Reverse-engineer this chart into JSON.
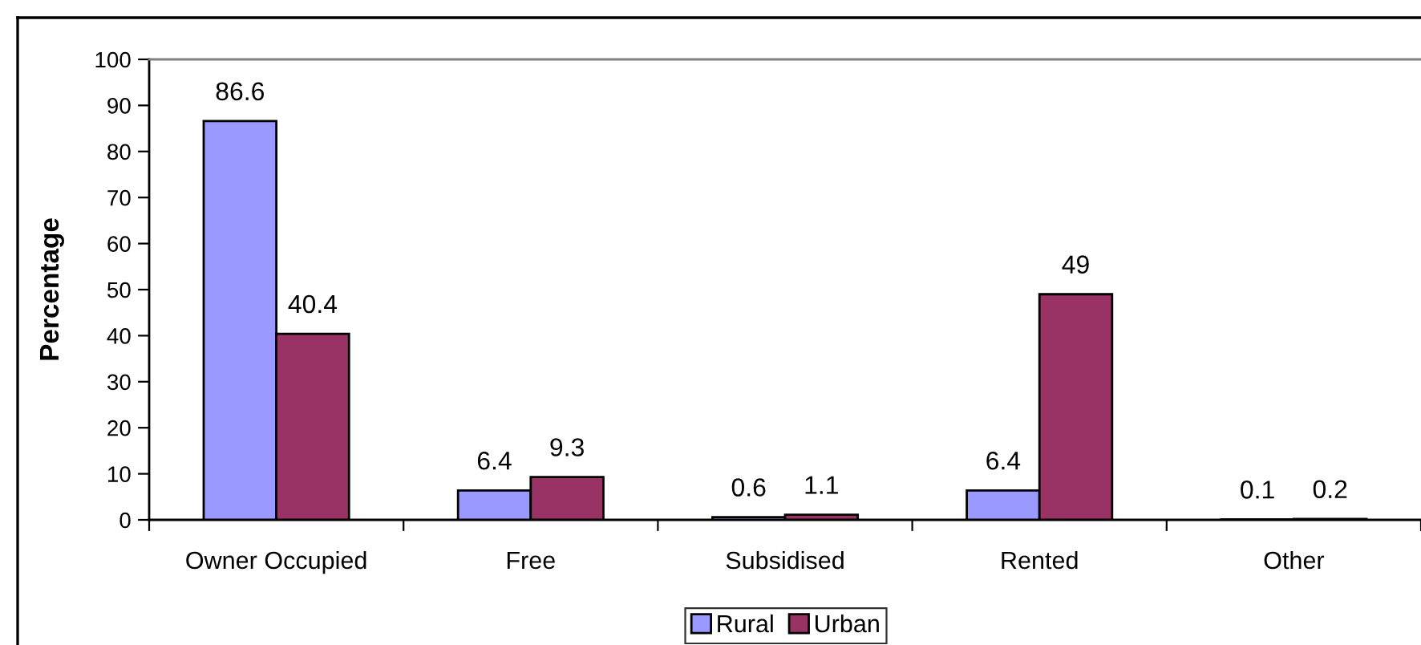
{
  "chart_data": {
    "type": "bar",
    "ylabel": "Percentage",
    "categories": [
      "Owner Occupied",
      "Free",
      "Subsidised",
      "Rented",
      "Other"
    ],
    "series": [
      {
        "name": "Rural",
        "color": "#9999ff",
        "values": [
          86.6,
          6.4,
          0.6,
          6.4,
          0.1
        ]
      },
      {
        "name": "Urban",
        "color": "#993366",
        "values": [
          40.4,
          9.3,
          1.1,
          49,
          0.2
        ]
      }
    ],
    "ylim": [
      0,
      100
    ],
    "yticks": [
      0,
      10,
      20,
      30,
      40,
      50,
      60,
      70,
      80,
      90,
      100
    ],
    "data_labels": true,
    "legend": "bottom"
  }
}
